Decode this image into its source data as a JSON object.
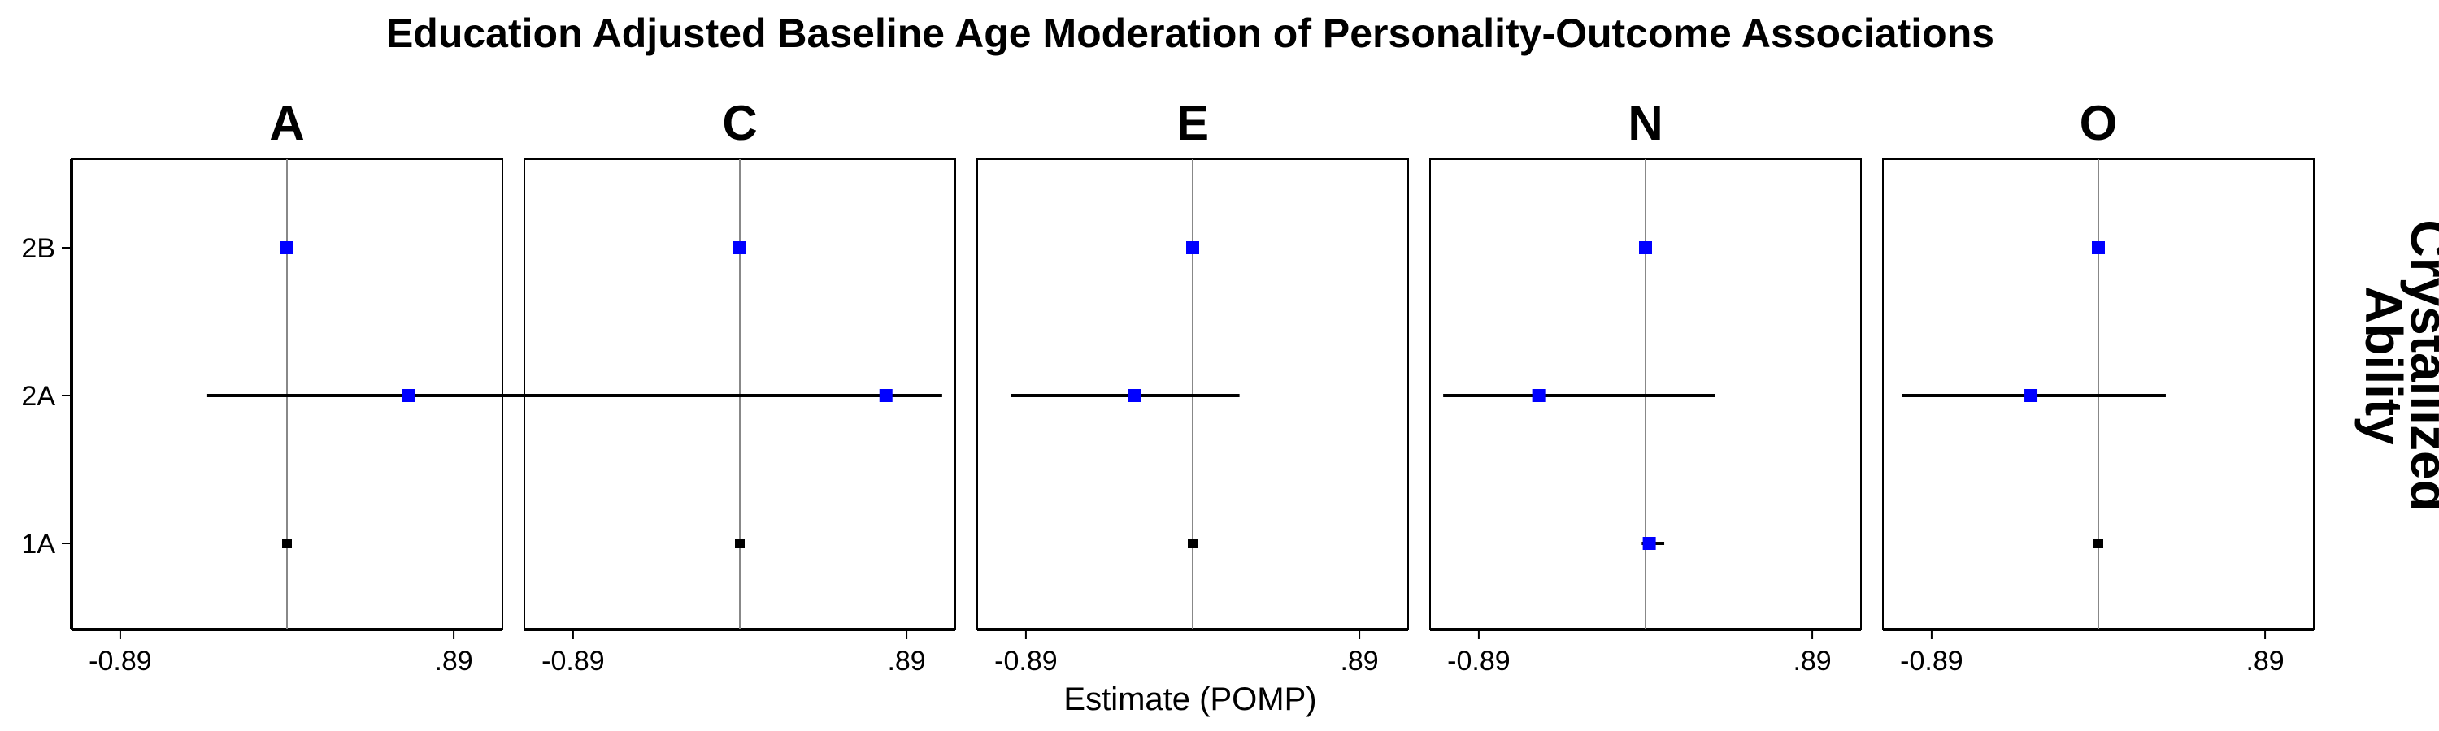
{
  "chart_data": {
    "type": "scatter",
    "title": "Education Adjusted Baseline Age Moderation of Personality-Outcome Associations",
    "xlabel": "Estimate (POMP)",
    "ylabel": "",
    "row_strip_label": [
      "Crystallized",
      "Ability"
    ],
    "xlim": [
      -1.15,
      1.15
    ],
    "x_ticks": [
      -0.89,
      0.89
    ],
    "x_tick_labels": [
      "-0.89",
      ".89"
    ],
    "y_categories": [
      "1A",
      "2A",
      "2B"
    ],
    "reference_line_x": 0,
    "point_colors": {
      "significant": "#0000ff",
      "nonsignificant": "#000000"
    },
    "panels": [
      {
        "name": "A",
        "points": [
          {
            "y": "2B",
            "x": 0.0,
            "lo": 0.0,
            "hi": 0.0,
            "significant": true
          },
          {
            "y": "2A",
            "x": 0.65,
            "lo": -0.43,
            "hi": 2.1,
            "significant": true
          },
          {
            "y": "1A",
            "x": 0.0,
            "lo": 0.0,
            "hi": 0.0,
            "significant": false
          }
        ]
      },
      {
        "name": "C",
        "points": [
          {
            "y": "2B",
            "x": 0.0,
            "lo": 0.0,
            "hi": 0.0,
            "significant": true
          },
          {
            "y": "2A",
            "x": 0.78,
            "lo": -0.33,
            "hi": 1.08,
            "significant": true
          },
          {
            "y": "1A",
            "x": 0.0,
            "lo": 0.0,
            "hi": 0.0,
            "significant": false
          }
        ]
      },
      {
        "name": "E",
        "points": [
          {
            "y": "2B",
            "x": 0.0,
            "lo": 0.0,
            "hi": 0.0,
            "significant": true
          },
          {
            "y": "2A",
            "x": -0.31,
            "lo": -0.97,
            "hi": 0.25,
            "significant": true
          },
          {
            "y": "1A",
            "x": 0.0,
            "lo": 0.0,
            "hi": 0.0,
            "significant": false
          }
        ]
      },
      {
        "name": "N",
        "points": [
          {
            "y": "2B",
            "x": 0.0,
            "lo": 0.0,
            "hi": 0.0,
            "significant": true
          },
          {
            "y": "2A",
            "x": -0.57,
            "lo": -1.08,
            "hi": 0.37,
            "significant": true
          },
          {
            "y": "1A",
            "x": 0.02,
            "lo": -0.02,
            "hi": 0.1,
            "significant": true
          }
        ]
      },
      {
        "name": "O",
        "points": [
          {
            "y": "2B",
            "x": 0.0,
            "lo": 0.0,
            "hi": 0.0,
            "significant": true
          },
          {
            "y": "2A",
            "x": -0.36,
            "lo": -1.05,
            "hi": 0.36,
            "significant": true
          },
          {
            "y": "1A",
            "x": 0.0,
            "lo": 0.0,
            "hi": 0.0,
            "significant": false
          }
        ]
      }
    ]
  }
}
